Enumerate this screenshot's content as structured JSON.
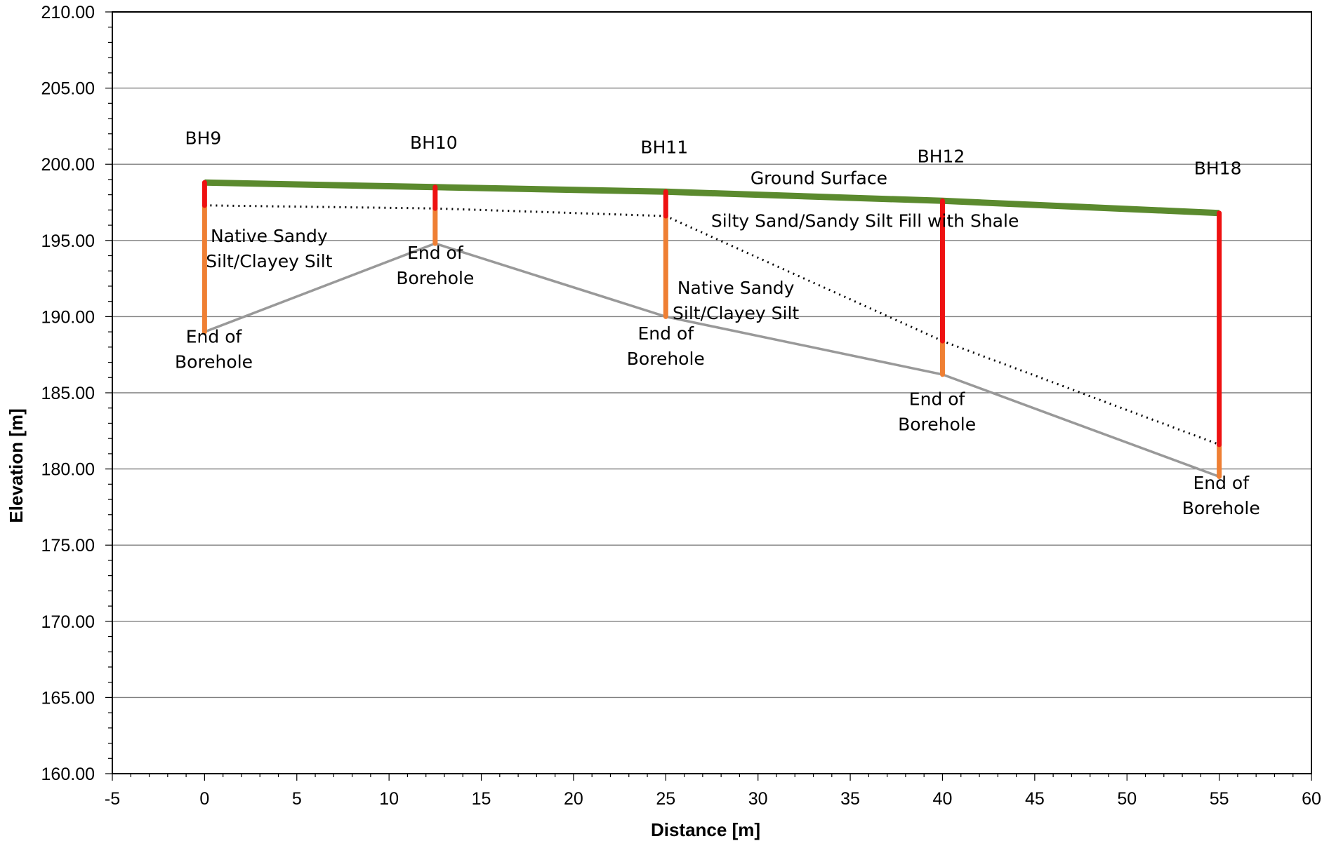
{
  "chart_data": {
    "type": "line",
    "title": "",
    "xlabel": "Distance [m]",
    "ylabel": "Elevation [m]",
    "xlim": [
      -5,
      60
    ],
    "ylim": [
      160,
      210
    ],
    "x_ticks": [
      -5,
      0,
      5,
      10,
      15,
      20,
      25,
      30,
      35,
      40,
      45,
      50,
      55,
      60
    ],
    "y_ticks": [
      160,
      165,
      170,
      175,
      180,
      185,
      190,
      195,
      200,
      205,
      210
    ],
    "y_tick_labels": [
      "160.00",
      "165.00",
      "170.00",
      "175.00",
      "180.00",
      "185.00",
      "190.00",
      "195.00",
      "200.00",
      "205.00",
      "210.00"
    ],
    "grid": "horizontal",
    "colors": {
      "ground": "#5b8a2e",
      "fill": "#ee1111",
      "native": "#ef7f33",
      "bottom": "#999999",
      "dotted": "#000000"
    },
    "boreholes": [
      {
        "name": "BH9",
        "x": 0,
        "ground": 198.8,
        "fill_bottom": 197.3,
        "end": 189.0
      },
      {
        "name": "BH10",
        "x": 12.5,
        "ground": 198.5,
        "fill_bottom": 197.1,
        "end": 194.8
      },
      {
        "name": "BH11",
        "x": 25,
        "ground": 198.2,
        "fill_bottom": 196.6,
        "end": 190.0
      },
      {
        "name": "BH12",
        "x": 40,
        "ground": 197.6,
        "fill_bottom": 188.4,
        "end": 186.2
      },
      {
        "name": "BH18",
        "x": 55,
        "ground": 196.8,
        "fill_bottom": 181.6,
        "end": 179.5
      }
    ],
    "series": [
      {
        "name": "Ground Surface",
        "x": [
          0,
          12.5,
          25,
          40,
          55
        ],
        "y": [
          198.8,
          198.5,
          198.2,
          197.6,
          196.8
        ]
      },
      {
        "name": "",
        "x": [
          0,
          12.5,
          25,
          40,
          55
        ],
        "y": [
          197.3,
          197.1,
          196.6,
          188.4,
          181.6
        ]
      },
      {
        "name": "",
        "x": [
          0,
          12.5,
          25,
          40,
          55
        ],
        "y": [
          189.0,
          194.8,
          190.0,
          186.2,
          179.5
        ]
      }
    ],
    "annotations": [
      {
        "lines": [
          "Ground Surface"
        ],
        "x": 33.3,
        "y": 198.7
      },
      {
        "lines": [
          "Silty Sand/Sandy Silt Fill with Shale"
        ],
        "x": 35.8,
        "y": 195.9
      },
      {
        "lines": [
          "Native Sandy",
          "Silt/Clayey Silt"
        ],
        "x": 3.5,
        "y": 194.9
      },
      {
        "lines": [
          "Native Sandy",
          "Silt/Clayey Silt"
        ],
        "x": 28.8,
        "y": 191.5
      },
      {
        "lines": [
          "End of",
          "Borehole"
        ],
        "x": 0.5,
        "y": 188.3
      },
      {
        "lines": [
          "End of",
          "Borehole"
        ],
        "x": 12.5,
        "y": 193.8
      },
      {
        "lines": [
          "End of",
          "Borehole"
        ],
        "x": 25,
        "y": 188.5
      },
      {
        "lines": [
          "End of",
          "Borehole"
        ],
        "x": 39.7,
        "y": 184.2
      },
      {
        "lines": [
          "End of",
          "Borehole"
        ],
        "x": 55.1,
        "y": 178.7
      }
    ]
  }
}
